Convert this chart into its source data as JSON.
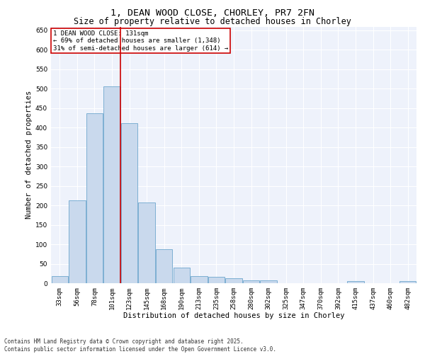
{
  "title1": "1, DEAN WOOD CLOSE, CHORLEY, PR7 2FN",
  "title2": "Size of property relative to detached houses in Chorley",
  "xlabel": "Distribution of detached houses by size in Chorley",
  "ylabel": "Number of detached properties",
  "categories": [
    "33sqm",
    "56sqm",
    "78sqm",
    "101sqm",
    "123sqm",
    "145sqm",
    "168sqm",
    "190sqm",
    "213sqm",
    "235sqm",
    "258sqm",
    "280sqm",
    "302sqm",
    "325sqm",
    "347sqm",
    "370sqm",
    "392sqm",
    "415sqm",
    "437sqm",
    "460sqm",
    "482sqm"
  ],
  "values": [
    18,
    213,
    437,
    507,
    412,
    207,
    87,
    40,
    18,
    17,
    13,
    7,
    8,
    0,
    0,
    0,
    0,
    6,
    0,
    0,
    5
  ],
  "bar_color": "#c9d9ed",
  "bar_edge_color": "#6ea6cd",
  "vline_color": "#cc0000",
  "vline_x": 3.5,
  "ylim": [
    0,
    660
  ],
  "yticks": [
    0,
    50,
    100,
    150,
    200,
    250,
    300,
    350,
    400,
    450,
    500,
    550,
    600,
    650
  ],
  "annotation_title": "1 DEAN WOOD CLOSE: 131sqm",
  "annotation_line1": "← 69% of detached houses are smaller (1,348)",
  "annotation_line2": "31% of semi-detached houses are larger (614) →",
  "annotation_box_color": "#ffffff",
  "annotation_box_edge_color": "#cc0000",
  "footer1": "Contains HM Land Registry data © Crown copyright and database right 2025.",
  "footer2": "Contains public sector information licensed under the Open Government Licence v3.0.",
  "bg_color": "#eef2fb",
  "title_fontsize": 9.5,
  "subtitle_fontsize": 8.5,
  "tick_fontsize": 6.5,
  "ylabel_fontsize": 7.5,
  "xlabel_fontsize": 7.5,
  "ann_fontsize": 6.5,
  "footer_fontsize": 5.5
}
